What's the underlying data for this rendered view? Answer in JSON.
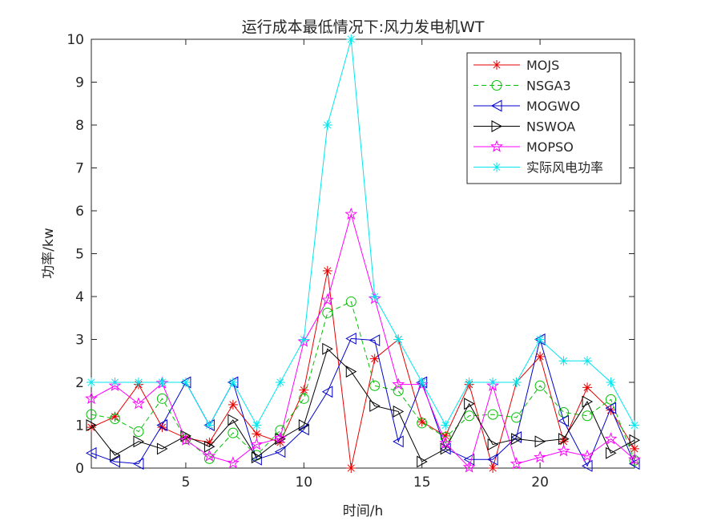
{
  "chart_data": {
    "type": "line",
    "title": "运行成本最低情况下:风力发电机WT",
    "xlabel": "时间/h",
    "ylabel": "功率/kw",
    "xlim": [
      1,
      24
    ],
    "ylim": [
      0,
      10
    ],
    "xticks": [
      5,
      10,
      15,
      20
    ],
    "yticks": [
      0,
      1,
      2,
      3,
      4,
      5,
      6,
      7,
      8,
      9,
      10
    ],
    "grid": false,
    "legend_position": "top-right",
    "x": [
      1,
      2,
      3,
      4,
      5,
      6,
      7,
      8,
      9,
      10,
      11,
      12,
      13,
      14,
      15,
      16,
      17,
      18,
      19,
      20,
      21,
      22,
      23,
      24
    ],
    "series": [
      {
        "name": "MOJS",
        "color": "#e60000",
        "dash": "",
        "marker": "asterisk",
        "values": [
          0.95,
          1.2,
          1.95,
          0.95,
          0.7,
          0.6,
          1.48,
          0.8,
          0.6,
          1.82,
          4.6,
          0.0,
          2.55,
          3.0,
          1.08,
          0.75,
          1.95,
          0.0,
          2.0,
          2.6,
          0.62,
          1.88,
          1.35,
          0.45
        ]
      },
      {
        "name": "NSGA3",
        "color": "#00c000",
        "dash": "6,4",
        "marker": "circle",
        "values": [
          1.25,
          1.15,
          0.85,
          1.62,
          0.68,
          0.22,
          0.82,
          0.3,
          0.88,
          1.62,
          3.62,
          3.88,
          1.92,
          1.8,
          1.05,
          0.72,
          1.22,
          1.25,
          1.18,
          1.92,
          1.3,
          1.22,
          1.6,
          0.18
        ]
      },
      {
        "name": "MOGWO",
        "color": "#0000cc",
        "dash": "",
        "marker": "triangle-left",
        "values": [
          0.35,
          0.15,
          0.1,
          1.0,
          2.0,
          1.0,
          2.0,
          0.2,
          0.38,
          0.9,
          1.78,
          3.02,
          2.98,
          0.62,
          2.0,
          0.45,
          0.2,
          0.2,
          0.72,
          3.0,
          1.1,
          0.05,
          1.4,
          0.1
        ]
      },
      {
        "name": "NSWOA",
        "color": "#000000",
        "dash": "",
        "marker": "triangle-right",
        "values": [
          1.0,
          0.3,
          0.62,
          0.45,
          0.75,
          0.5,
          1.12,
          0.25,
          0.68,
          1.0,
          2.78,
          2.25,
          1.45,
          1.32,
          0.15,
          0.45,
          1.5,
          0.55,
          0.68,
          0.62,
          0.68,
          1.55,
          0.35,
          0.65
        ]
      },
      {
        "name": "MOPSO",
        "color": "#ff00ff",
        "dash": "",
        "marker": "pentagram",
        "values": [
          1.62,
          1.92,
          1.5,
          1.98,
          0.65,
          0.28,
          0.12,
          0.55,
          0.7,
          2.95,
          3.92,
          5.92,
          3.95,
          1.95,
          1.95,
          0.58,
          0.02,
          1.92,
          0.1,
          0.25,
          0.4,
          0.28,
          0.68,
          0.2
        ]
      },
      {
        "name": "实际风电功率",
        "color": "#00e5ee",
        "dash": "",
        "marker": "asterisk",
        "values": [
          2.0,
          2.0,
          2.0,
          2.0,
          2.0,
          1.0,
          2.0,
          1.0,
          2.0,
          3.0,
          8.0,
          10.0,
          4.0,
          3.0,
          2.0,
          1.0,
          2.0,
          2.0,
          2.0,
          3.0,
          2.5,
          2.5,
          2.0,
          1.0
        ]
      }
    ]
  }
}
